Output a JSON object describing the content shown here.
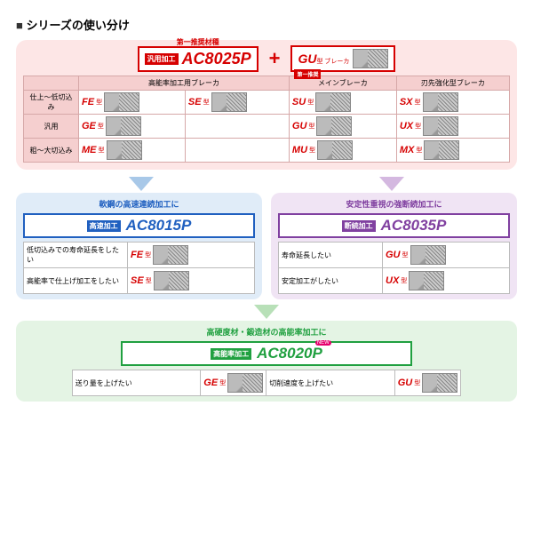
{
  "page": {
    "title": "シリーズの使い分け"
  },
  "main": {
    "bg_color": "#fde6e6",
    "rec_label": "第一推奨材種",
    "tag": "汎用加工",
    "code": "AC8025P",
    "gu_label": "GU",
    "gu_suffix": "型 ブレーカ",
    "gu_rec": "第一推奨",
    "cols": [
      "高能率加工用ブレーカ",
      "メインブレーカ",
      "刃先強化型ブレーカ"
    ],
    "rows": [
      {
        "label": "仕上～低切込み",
        "cells": [
          "FE",
          "SE",
          "SU",
          "SX"
        ]
      },
      {
        "label": "汎用",
        "cells": [
          "GE",
          "",
          "GU",
          "UX"
        ]
      },
      {
        "label": "粗～大切込み",
        "cells": [
          "ME",
          "",
          "MU",
          "MX"
        ]
      }
    ]
  },
  "blue": {
    "title": "軟鋼の高速連続加工に",
    "tag": "高速加工",
    "code": "AC8015P",
    "rows": [
      {
        "desc": "低切込みでの寿命延長をしたい",
        "type": "FE"
      },
      {
        "desc": "高能率で仕上げ加工をしたい",
        "type": "SE"
      }
    ]
  },
  "purple": {
    "title": "安定性重視の強断続加工に",
    "tag": "断続加工",
    "code": "AC8035P",
    "rows": [
      {
        "desc": "寿命延長したい",
        "type": "GU"
      },
      {
        "desc": "安定加工がしたい",
        "type": "UX"
      }
    ]
  },
  "green": {
    "title": "高硬度材・鍛造材の高能率加工に",
    "tag": "高能率加工",
    "code": "AC8020P",
    "new": "NEW",
    "rows": [
      {
        "desc": "送り量を上げたい",
        "type": "GE"
      },
      {
        "desc": "切削速度を上げたい",
        "type": "GU"
      }
    ]
  },
  "type_suffix": "型",
  "colors": {
    "red": "#d60000",
    "blue": "#2060c0",
    "purple": "#8040a0",
    "green": "#20a040"
  }
}
